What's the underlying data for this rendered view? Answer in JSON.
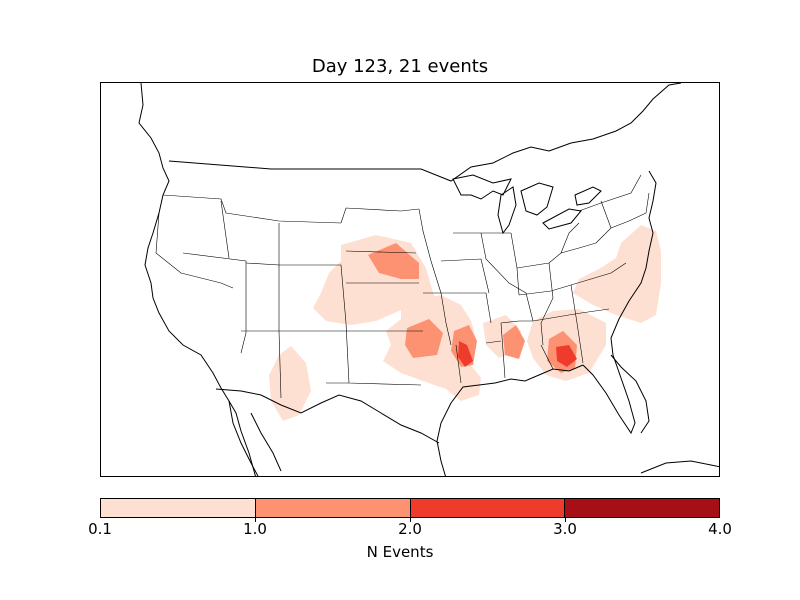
{
  "title": "Day 123, 21 events",
  "colorbar": {
    "label": "N Events",
    "ticks": [
      "0.1",
      "1.0",
      "2.0",
      "3.0",
      "4.0"
    ],
    "colors": [
      "#fee0d2",
      "#fc9272",
      "#ef3b2c",
      "#a50f15"
    ]
  }
}
